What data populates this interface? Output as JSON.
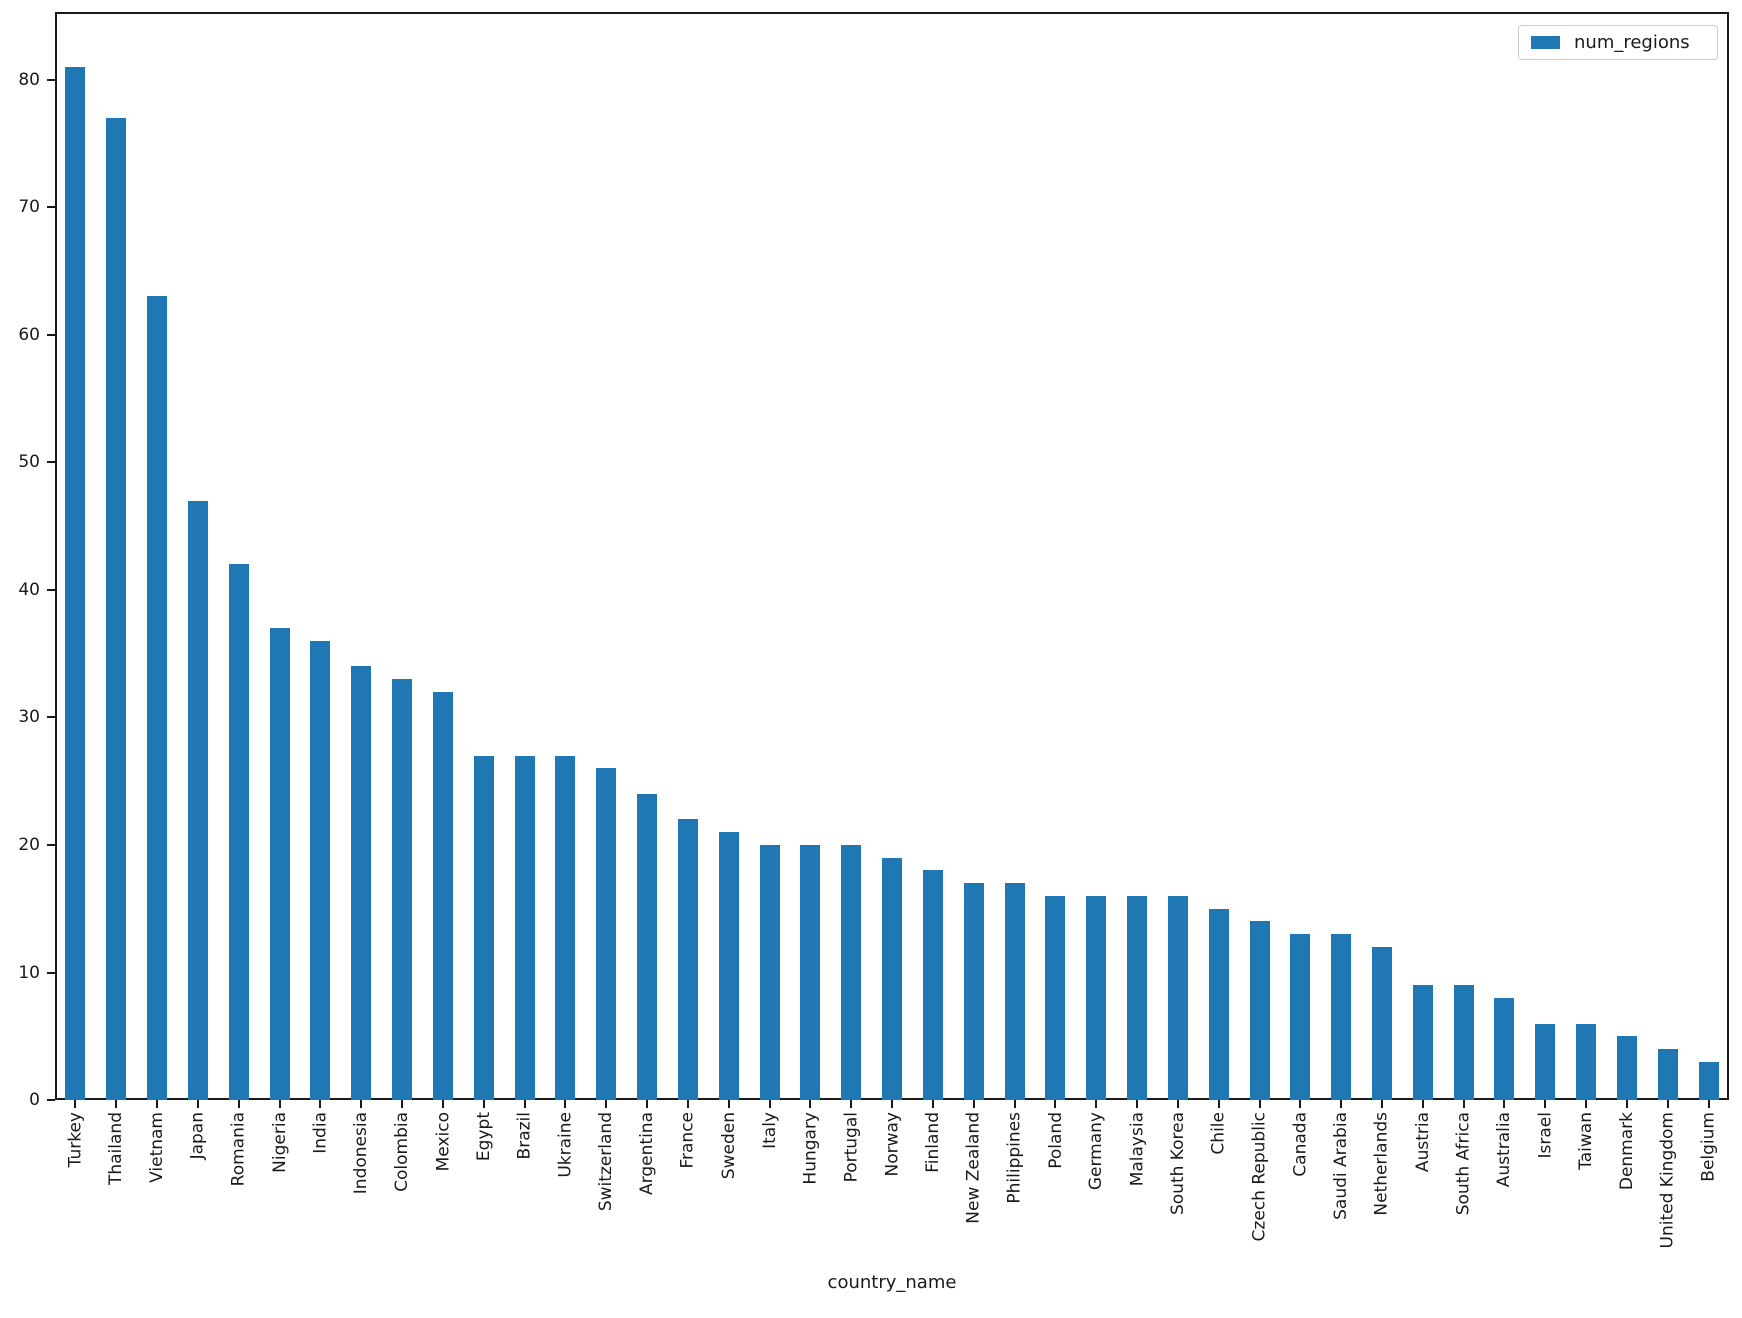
{
  "chart_data": {
    "type": "bar",
    "title": "",
    "xlabel": "country_name",
    "ylabel": "",
    "legend_entries": [
      "num_regions"
    ],
    "legend_position": "upper right",
    "bar_color": "#1f77b4",
    "grid": false,
    "ylim": [
      0,
      85.3
    ],
    "yticks": [
      0,
      10,
      20,
      30,
      40,
      50,
      60,
      70,
      80
    ],
    "categories": [
      "Turkey",
      "Thailand",
      "Vietnam",
      "Japan",
      "Romania",
      "Nigeria",
      "India",
      "Indonesia",
      "Colombia",
      "Mexico",
      "Egypt",
      "Brazil",
      "Ukraine",
      "Switzerland",
      "Argentina",
      "France",
      "Sweden",
      "Italy",
      "Hungary",
      "Portugal",
      "Norway",
      "Finland",
      "New Zealand",
      "Philippines",
      "Poland",
      "Germany",
      "Malaysia",
      "South Korea",
      "Chile",
      "Czech Republic",
      "Canada",
      "Saudi Arabia",
      "Netherlands",
      "Austria",
      "South Africa",
      "Australia",
      "Israel",
      "Taiwan",
      "Denmark",
      "United Kingdom",
      "Belgium"
    ],
    "values": [
      81,
      77,
      63,
      47,
      42,
      37,
      36,
      34,
      33,
      32,
      27,
      27,
      27,
      26,
      24,
      22,
      21,
      20,
      20,
      20,
      19,
      18,
      17,
      17,
      16,
      16,
      16,
      16,
      15,
      14,
      13,
      13,
      12,
      9,
      9,
      8,
      6,
      6,
      5,
      4,
      3
    ]
  }
}
